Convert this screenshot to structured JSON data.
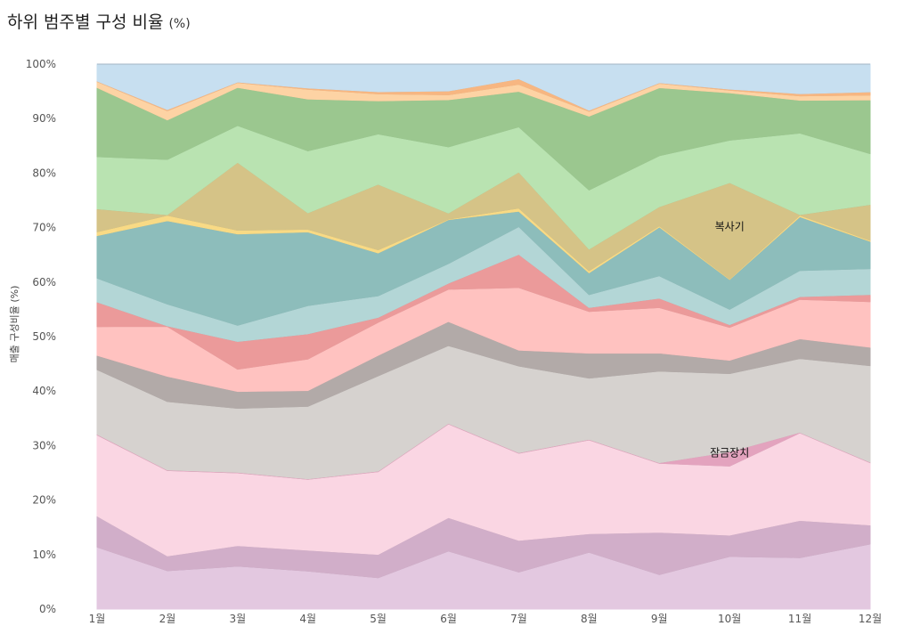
{
  "chart_data": {
    "type": "area",
    "stacking": "percent",
    "title": "하위 범주별 구성 비율",
    "title_unit": "(%)",
    "ylabel": "매출 구성비율 (%)",
    "xlabel": "",
    "categories": [
      "1월",
      "2월",
      "3월",
      "4월",
      "5월",
      "6월",
      "7월",
      "8월",
      "9월",
      "10월",
      "11월",
      "12월"
    ],
    "yticks": [
      "0%",
      "10%",
      "20%",
      "30%",
      "40%",
      "50%",
      "60%",
      "70%",
      "80%",
      "90%",
      "100%"
    ],
    "ylim": [
      0,
      100
    ],
    "grid": false,
    "series": [
      {
        "color": "#e3c8e0",
        "values": [
          11.4,
          7.0,
          7.9,
          7.0,
          5.8,
          10.6,
          6.8,
          10.5,
          6.3,
          9.9,
          9.4,
          12.0
        ]
      },
      {
        "color": "#d1aec9",
        "values": [
          5.7,
          2.7,
          3.8,
          3.8,
          4.3,
          6.1,
          5.8,
          3.4,
          7.7,
          4.0,
          6.8,
          3.5
        ]
      },
      {
        "color": "#fad6e3",
        "values": [
          14.9,
          15.6,
          13.4,
          13.0,
          15.3,
          17.1,
          16.0,
          17.3,
          12.6,
          13.0,
          16.0,
          11.5
        ]
      },
      {
        "color": "#e3a3be",
        "values": [
          0.1,
          0.1,
          0.1,
          0.1,
          0.1,
          0.1,
          0.1,
          0.1,
          0.1,
          2.7,
          0.1,
          0.1
        ]
      },
      {
        "color": "#d6d2cf",
        "values": [
          11.9,
          12.5,
          11.8,
          13.3,
          17.6,
          14.2,
          15.9,
          11.3,
          16.7,
          14.7,
          13.5,
          17.8
        ]
      },
      {
        "color": "#b2aaa8",
        "values": [
          2.6,
          4.6,
          3.1,
          2.9,
          3.8,
          4.4,
          2.9,
          4.6,
          3.3,
          2.5,
          3.6,
          3.4
        ]
      },
      {
        "color": "#ffc2c0",
        "values": [
          5.3,
          9.1,
          4.1,
          5.8,
          6.1,
          5.9,
          11.5,
          7.7,
          8.3,
          6.2,
          7.2,
          8.4
        ]
      },
      {
        "color": "#eb9a9a",
        "values": [
          4.5,
          0.1,
          5.1,
          4.6,
          0.9,
          1.1,
          6.1,
          0.7,
          1.7,
          0.5,
          0.5,
          1.3
        ]
      },
      {
        "color": "#b3d6d6",
        "values": [
          4.4,
          4.0,
          3.0,
          5.2,
          4.0,
          3.6,
          5.1,
          2.4,
          4.1,
          2.9,
          4.8,
          4.8
        ]
      },
      {
        "color": "#8dbdbb",
        "values": [
          7.8,
          15.2,
          16.8,
          13.5,
          7.9,
          8.0,
          2.8,
          4.0,
          8.9,
          5.6,
          9.8,
          5.0
        ]
      },
      {
        "color": "#f8da85",
        "values": [
          0.7,
          1.0,
          0.7,
          0.5,
          0.6,
          0.1,
          0.6,
          0.4,
          0.2,
          0.1,
          0.3,
          0.2
        ]
      },
      {
        "color": "#d5c387",
        "values": [
          4.2,
          0.1,
          12.5,
          3.0,
          12.1,
          1.1,
          6.6,
          4.0,
          3.5,
          18.1,
          0.1,
          6.6
        ]
      },
      {
        "color": "#b9e3b1",
        "values": [
          9.6,
          10.1,
          6.8,
          11.4,
          9.3,
          12.1,
          8.3,
          10.9,
          9.3,
          8.0,
          14.9,
          9.4
        ]
      },
      {
        "color": "#9bc78f",
        "values": [
          12.7,
          7.2,
          7.0,
          9.5,
          6.1,
          8.6,
          6.5,
          13.6,
          12.4,
          8.9,
          6.0,
          9.9
        ]
      },
      {
        "color": "#fdd3a4",
        "values": [
          1.1,
          1.7,
          0.9,
          1.8,
          1.3,
          0.9,
          1.3,
          0.9,
          0.8,
          0.5,
          0.8,
          0.9
        ]
      },
      {
        "color": "#f7b681",
        "values": [
          0.1,
          0.2,
          0.1,
          0.2,
          0.4,
          0.7,
          1.0,
          0.2,
          0.1,
          0.2,
          0.4,
          0.6
        ]
      },
      {
        "color": "#c7dff0",
        "values": [
          3.1,
          8.3,
          3.3,
          4.4,
          5.1,
          4.9,
          2.7,
          8.5,
          3.4,
          4.7,
          5.4,
          5.1
        ]
      }
    ],
    "annotations": [
      {
        "text": "복사기",
        "x": "10월",
        "y": 69.5
      },
      {
        "text": "잠금장치",
        "x": "10월",
        "y": 28.0
      }
    ]
  }
}
